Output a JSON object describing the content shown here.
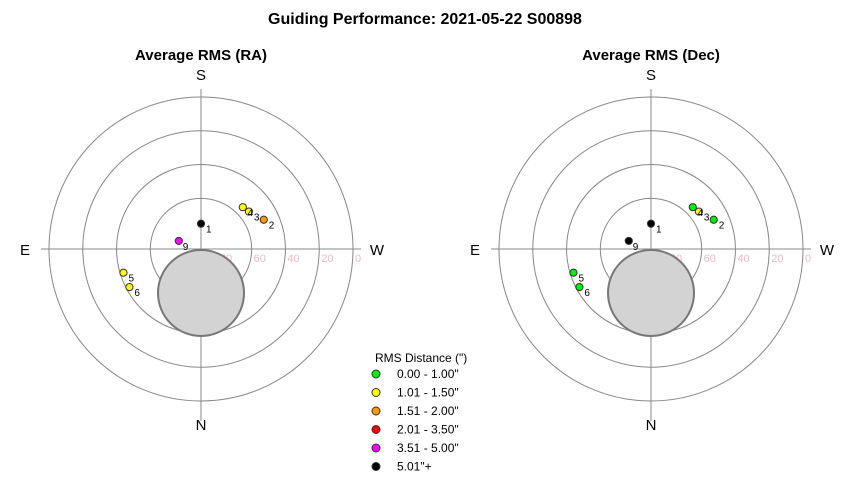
{
  "title": "Guiding Performance: 2021-05-22 S00898",
  "chart_data": [
    {
      "type": "scatter",
      "subtitle": "Average RMS (RA)",
      "coordinates": "polar-sky",
      "directions": {
        "top": "S",
        "bottom": "N",
        "left": "E",
        "right": "W"
      },
      "ring_labels": [
        "80",
        "60",
        "40",
        "20",
        "0"
      ],
      "points": [
        {
          "label": "1",
          "az": 0,
          "alt": 75,
          "color": "#000000"
        },
        {
          "label": "2",
          "az": 295,
          "alt": 49,
          "color": "#ff9900"
        },
        {
          "label": "3",
          "az": 308,
          "alt": 54,
          "color": "#ffff00"
        },
        {
          "label": "4",
          "az": 315,
          "alt": 55,
          "color": "#ffff00"
        },
        {
          "label": "5",
          "az": 107,
          "alt": 42,
          "color": "#ffff00"
        },
        {
          "label": "6",
          "az": 118,
          "alt": 42,
          "color": "#ffff00"
        },
        {
          "label": "9",
          "az": 70,
          "alt": 76,
          "color": "#ff00ff"
        }
      ],
      "moon": {
        "az": 180,
        "alt": 60
      }
    },
    {
      "type": "scatter",
      "subtitle": "Average RMS (Dec)",
      "coordinates": "polar-sky",
      "directions": {
        "top": "S",
        "bottom": "N",
        "left": "E",
        "right": "W"
      },
      "ring_labels": [
        "80",
        "60",
        "40",
        "20",
        "0"
      ],
      "points": [
        {
          "label": "1",
          "az": 0,
          "alt": 75,
          "color": "#000000"
        },
        {
          "label": "2",
          "az": 295,
          "alt": 49,
          "color": "#00ee00"
        },
        {
          "label": "3",
          "az": 308,
          "alt": 54,
          "color": "#ffff00"
        },
        {
          "label": "4",
          "az": 315,
          "alt": 55,
          "color": "#00ee00"
        },
        {
          "label": "5",
          "az": 107,
          "alt": 42,
          "color": "#00ee00"
        },
        {
          "label": "6",
          "az": 118,
          "alt": 42,
          "color": "#00ee00"
        },
        {
          "label": "9",
          "az": 70,
          "alt": 76,
          "color": "#000000"
        }
      ],
      "moon": {
        "az": 180,
        "alt": 60
      }
    }
  ],
  "legend": {
    "title": "RMS Distance (\")",
    "items": [
      {
        "label": "0.00 - 1.00\"",
        "color": "#00ee00"
      },
      {
        "label": "1.01 - 1.50\"",
        "color": "#ffff00"
      },
      {
        "label": "1.51 - 2.00\"",
        "color": "#ff9900"
      },
      {
        "label": "2.01 - 3.50\"",
        "color": "#ff0000"
      },
      {
        "label": "3.51 - 5.00\"",
        "color": "#ff00ff"
      },
      {
        "label": "5.01\"+",
        "color": "#000000"
      }
    ]
  }
}
